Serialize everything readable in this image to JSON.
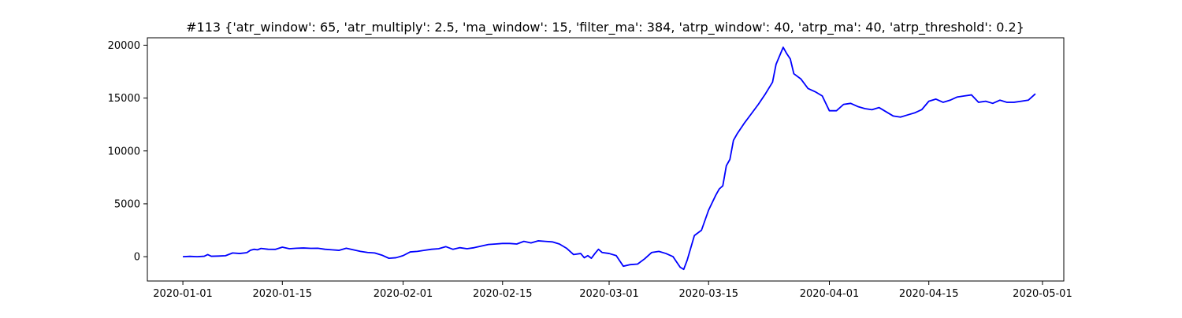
{
  "chart_data": {
    "type": "line",
    "title": "#113 {'atr_window': 65, 'atr_multiply': 2.5, 'ma_window': 15, 'filter_ma': 384, 'atrp_window': 40, 'atrp_ma': 40, 'atrp_threshold': 0.2}",
    "xlabel": "",
    "ylabel": "",
    "x_axis_type": "date",
    "xlim": [
      "2019-12-27",
      "2020-05-04"
    ],
    "ylim": [
      -2300,
      20700
    ],
    "x_ticks": [
      "2020-01-01",
      "2020-01-15",
      "2020-02-01",
      "2020-02-15",
      "2020-03-01",
      "2020-03-15",
      "2020-04-01",
      "2020-04-15",
      "2020-05-01"
    ],
    "y_ticks": [
      0,
      5000,
      10000,
      15000,
      20000
    ],
    "y_tick_labels": [
      "0",
      "5000",
      "10000",
      "15000",
      "20000"
    ],
    "grid": false,
    "legend": "none",
    "line_color": "#0000ff",
    "series": [
      {
        "points": [
          [
            "2020-01-01",
            0
          ],
          [
            "2020-01-02",
            30
          ],
          [
            "2020-01-03",
            0
          ],
          [
            "2020-01-04",
            40
          ],
          [
            "2020-01-04T12",
            200
          ],
          [
            "2020-01-05",
            40
          ],
          [
            "2020-01-06",
            60
          ],
          [
            "2020-01-07",
            90
          ],
          [
            "2020-01-08",
            350
          ],
          [
            "2020-01-09",
            300
          ],
          [
            "2020-01-10",
            380
          ],
          [
            "2020-01-10T12",
            600
          ],
          [
            "2020-01-11",
            700
          ],
          [
            "2020-01-11T12",
            650
          ],
          [
            "2020-01-12",
            780
          ],
          [
            "2020-01-13",
            700
          ],
          [
            "2020-01-14",
            690
          ],
          [
            "2020-01-15",
            900
          ],
          [
            "2020-01-16",
            750
          ],
          [
            "2020-01-17",
            800
          ],
          [
            "2020-01-18",
            820
          ],
          [
            "2020-01-19",
            790
          ],
          [
            "2020-01-20",
            800
          ],
          [
            "2020-01-21",
            700
          ],
          [
            "2020-01-22",
            650
          ],
          [
            "2020-01-23",
            600
          ],
          [
            "2020-01-24",
            800
          ],
          [
            "2020-01-25",
            650
          ],
          [
            "2020-01-26",
            500
          ],
          [
            "2020-01-27",
            400
          ],
          [
            "2020-01-28",
            350
          ],
          [
            "2020-01-29",
            150
          ],
          [
            "2020-01-30",
            -150
          ],
          [
            "2020-01-31",
            -100
          ],
          [
            "2020-02-01",
            100
          ],
          [
            "2020-02-02",
            450
          ],
          [
            "2020-02-03",
            500
          ],
          [
            "2020-02-04",
            600
          ],
          [
            "2020-02-05",
            700
          ],
          [
            "2020-02-06",
            750
          ],
          [
            "2020-02-07",
            950
          ],
          [
            "2020-02-08",
            700
          ],
          [
            "2020-02-09",
            850
          ],
          [
            "2020-02-10",
            750
          ],
          [
            "2020-02-11",
            850
          ],
          [
            "2020-02-12",
            1000
          ],
          [
            "2020-02-13",
            1150
          ],
          [
            "2020-02-14",
            1200
          ],
          [
            "2020-02-15",
            1250
          ],
          [
            "2020-02-16",
            1250
          ],
          [
            "2020-02-17",
            1200
          ],
          [
            "2020-02-18",
            1450
          ],
          [
            "2020-02-19",
            1300
          ],
          [
            "2020-02-20",
            1500
          ],
          [
            "2020-02-21",
            1450
          ],
          [
            "2020-02-22",
            1400
          ],
          [
            "2020-02-23",
            1200
          ],
          [
            "2020-02-24",
            800
          ],
          [
            "2020-02-25",
            200
          ],
          [
            "2020-02-26",
            300
          ],
          [
            "2020-02-26T12",
            -100
          ],
          [
            "2020-02-27",
            100
          ],
          [
            "2020-02-27T12",
            -150
          ],
          [
            "2020-02-28",
            300
          ],
          [
            "2020-02-28T12",
            700
          ],
          [
            "2020-02-29",
            400
          ],
          [
            "2020-03-01",
            300
          ],
          [
            "2020-03-02",
            100
          ],
          [
            "2020-03-03",
            -900
          ],
          [
            "2020-03-04",
            -750
          ],
          [
            "2020-03-05",
            -700
          ],
          [
            "2020-03-06",
            -200
          ],
          [
            "2020-03-07",
            400
          ],
          [
            "2020-03-08",
            500
          ],
          [
            "2020-03-09",
            300
          ],
          [
            "2020-03-10",
            0
          ],
          [
            "2020-03-10T12",
            -500
          ],
          [
            "2020-03-11",
            -1000
          ],
          [
            "2020-03-11T12",
            -1200
          ],
          [
            "2020-03-12",
            -300
          ],
          [
            "2020-03-13",
            2000
          ],
          [
            "2020-03-14",
            2500
          ],
          [
            "2020-03-15",
            4400
          ],
          [
            "2020-03-16",
            5800
          ],
          [
            "2020-03-16T12",
            6400
          ],
          [
            "2020-03-17",
            6700
          ],
          [
            "2020-03-17T12",
            8600
          ],
          [
            "2020-03-18",
            9200
          ],
          [
            "2020-03-18T12",
            11000
          ],
          [
            "2020-03-19",
            11600
          ],
          [
            "2020-03-20",
            12600
          ],
          [
            "2020-03-21",
            13500
          ],
          [
            "2020-03-22",
            14400
          ],
          [
            "2020-03-23",
            15400
          ],
          [
            "2020-03-24",
            16500
          ],
          [
            "2020-03-24T12",
            18200
          ],
          [
            "2020-03-25",
            19000
          ],
          [
            "2020-03-25T12",
            19800
          ],
          [
            "2020-03-26",
            19200
          ],
          [
            "2020-03-26T12",
            18700
          ],
          [
            "2020-03-27",
            17300
          ],
          [
            "2020-03-28",
            16800
          ],
          [
            "2020-03-29",
            15900
          ],
          [
            "2020-03-30",
            15600
          ],
          [
            "2020-03-31",
            15200
          ],
          [
            "2020-04-01",
            13800
          ],
          [
            "2020-04-02",
            13800
          ],
          [
            "2020-04-03",
            14400
          ],
          [
            "2020-04-04",
            14500
          ],
          [
            "2020-04-05",
            14200
          ],
          [
            "2020-04-06",
            14000
          ],
          [
            "2020-04-07",
            13900
          ],
          [
            "2020-04-08",
            14100
          ],
          [
            "2020-04-09",
            13700
          ],
          [
            "2020-04-10",
            13300
          ],
          [
            "2020-04-11",
            13200
          ],
          [
            "2020-04-12",
            13400
          ],
          [
            "2020-04-13",
            13600
          ],
          [
            "2020-04-14",
            13900
          ],
          [
            "2020-04-15",
            14700
          ],
          [
            "2020-04-16",
            14900
          ],
          [
            "2020-04-17",
            14600
          ],
          [
            "2020-04-18",
            14800
          ],
          [
            "2020-04-19",
            15100
          ],
          [
            "2020-04-20",
            15200
          ],
          [
            "2020-04-21",
            15300
          ],
          [
            "2020-04-22",
            14600
          ],
          [
            "2020-04-23",
            14700
          ],
          [
            "2020-04-24",
            14500
          ],
          [
            "2020-04-25",
            14800
          ],
          [
            "2020-04-26",
            14600
          ],
          [
            "2020-04-27",
            14600
          ],
          [
            "2020-04-28",
            14700
          ],
          [
            "2020-04-29",
            14800
          ],
          [
            "2020-04-30",
            15400
          ]
        ]
      }
    ]
  }
}
